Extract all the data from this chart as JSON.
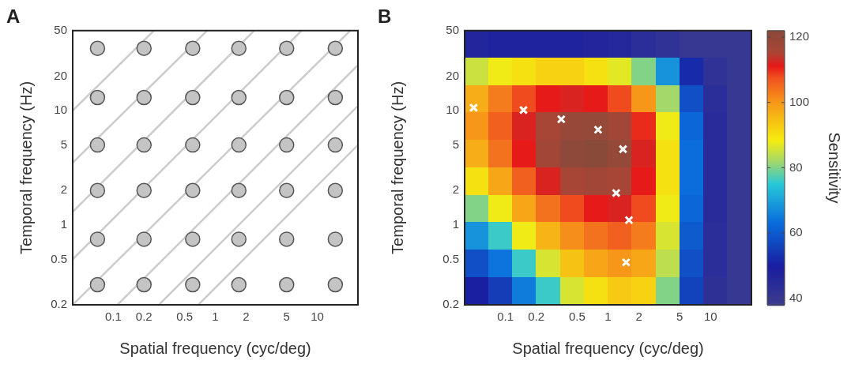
{
  "chart_data": [
    {
      "type": "scatter",
      "title": "A",
      "xlabel": "Spatial frequency (cyc/deg)",
      "ylabel": "Temporal frequency (Hz)",
      "log": "xy",
      "xlim": [
        0.04,
        25
      ],
      "ylim": [
        0.2,
        50
      ],
      "xticks": [
        0.1,
        0.2,
        0.5,
        1,
        2,
        5,
        10
      ],
      "yticks": [
        0.2,
        0.5,
        1,
        2,
        5,
        10,
        20,
        50
      ],
      "grid": false,
      "legend": false,
      "series": [
        {
          "type": "scatter",
          "marker": "circle",
          "color": "#c4c4c4",
          "x": [
            0.07,
            0.2,
            0.6,
            1.7,
            5,
            15,
            0.07,
            0.2,
            0.6,
            1.7,
            5,
            15,
            0.07,
            0.2,
            0.6,
            1.7,
            5,
            15,
            0.07,
            0.2,
            0.6,
            1.7,
            5,
            15,
            0.07,
            0.2,
            0.6,
            1.7,
            5,
            15,
            0.07,
            0.2,
            0.6,
            1.7,
            5,
            15
          ],
          "values": [
            35,
            35,
            35,
            35,
            35,
            35,
            13,
            13,
            13,
            13,
            13,
            13,
            5,
            5,
            5,
            5,
            5,
            5,
            2,
            2,
            2,
            2,
            2,
            2,
            0.75,
            0.75,
            0.75,
            0.75,
            0.75,
            0.75,
            0.3,
            0.3,
            0.3,
            0.3,
            0.3,
            0.3
          ]
        },
        {
          "type": "line",
          "color": "#cccccc",
          "x": [
            0.04,
            0.25
          ],
          "values": [
            10,
            50
          ]
        },
        {
          "type": "line",
          "color": "#cccccc",
          "x": [
            0.04,
            0.83
          ],
          "values": [
            3.5,
            50
          ]
        },
        {
          "type": "line",
          "color": "#cccccc",
          "x": [
            0.04,
            2.4
          ],
          "values": [
            1.3,
            50
          ]
        },
        {
          "type": "line",
          "color": "#cccccc",
          "x": [
            0.04,
            7
          ],
          "values": [
            0.5,
            50
          ]
        },
        {
          "type": "line",
          "color": "#cccccc",
          "x": [
            0.04,
            21
          ],
          "values": [
            0.2,
            50
          ]
        },
        {
          "type": "line",
          "color": "#cccccc",
          "x": [
            0.11,
            25
          ],
          "values": [
            0.2,
            25
          ]
        },
        {
          "type": "line",
          "color": "#cccccc",
          "x": [
            0.28,
            25
          ],
          "values": [
            0.2,
            11
          ]
        },
        {
          "type": "line",
          "color": "#cccccc",
          "x": [
            0.68,
            25
          ],
          "values": [
            0.2,
            5
          ]
        }
      ]
    },
    {
      "type": "heatmap",
      "title": "B",
      "xlabel": "Spatial frequency (cyc/deg)",
      "ylabel": "Temporal frequency (Hz)",
      "clabel": "Sensitivity",
      "log": "xy",
      "xlim": [
        0.04,
        25
      ],
      "ylim": [
        0.2,
        50
      ],
      "xticks": [
        0.1,
        0.2,
        0.5,
        1,
        2,
        5,
        10
      ],
      "yticks": [
        0.2,
        0.5,
        1,
        2,
        5,
        10,
        20,
        50
      ],
      "grid": false,
      "legend": false,
      "clim": [
        38,
        122
      ],
      "cticks": [
        40,
        60,
        80,
        100,
        120
      ],
      "cells": [
        [
          47,
          48,
          48,
          48,
          48,
          47,
          46,
          44,
          42,
          40,
          40,
          40
        ],
        [
          85,
          88,
          90,
          92,
          92,
          90,
          87,
          80,
          68,
          52,
          42,
          40
        ],
        [
          97,
          103,
          108,
          111,
          112,
          111,
          108,
          100,
          82,
          58,
          44,
          40
        ],
        [
          100,
          106,
          112,
          116,
          119,
          120,
          117,
          110,
          88,
          62,
          45,
          40
        ],
        [
          97,
          104,
          111,
          117,
          121,
          122,
          120,
          112,
          90,
          63,
          45,
          40
        ],
        [
          90,
          98,
          106,
          112,
          116,
          117,
          116,
          111,
          90,
          63,
          45,
          40
        ],
        [
          80,
          88,
          98,
          104,
          108,
          111,
          112,
          108,
          88,
          62,
          45,
          40
        ],
        [
          68,
          76,
          88,
          96,
          101,
          104,
          106,
          103,
          86,
          60,
          44,
          40
        ],
        [
          58,
          64,
          76,
          86,
          94,
          98,
          100,
          98,
          84,
          58,
          44,
          40
        ],
        [
          50,
          55,
          65,
          76,
          86,
          90,
          93,
          92,
          80,
          56,
          43,
          40
        ]
      ],
      "series": [
        {
          "type": "scatter",
          "marker": "cross",
          "color": "#ffffff",
          "x": [
            0.049,
            0.15,
            0.35,
            0.8,
            1.4,
            1.2,
            1.6,
            1.5
          ],
          "values": [
            10.6,
            10.1,
            8.4,
            6.8,
            4.6,
            1.9,
            1.1,
            0.47
          ]
        }
      ]
    }
  ]
}
